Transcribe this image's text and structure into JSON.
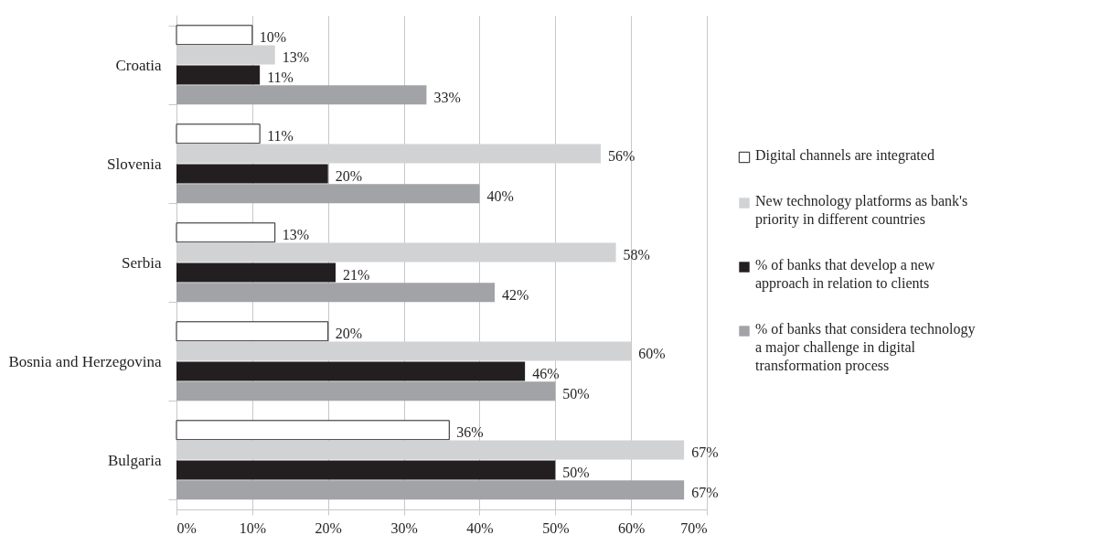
{
  "chart_data": {
    "type": "bar",
    "orientation": "horizontal",
    "categories": [
      "Croatia",
      "Slovenia",
      "Serbia",
      "Bosnia and Herzegovina",
      "Bulgaria"
    ],
    "series": [
      {
        "name": "Digital channels are integrated",
        "color": "#ffffff",
        "values": [
          10,
          11,
          13,
          20,
          36
        ],
        "value_labels": [
          "10%",
          "11%",
          "13%",
          "20%",
          "36%"
        ]
      },
      {
        "name": "New technology platforms as bank's priority in different countries",
        "color": "#d1d2d4",
        "values": [
          13,
          56,
          58,
          60,
          67
        ],
        "value_labels": [
          "13%",
          "56%",
          "58%",
          "60%",
          "67%"
        ]
      },
      {
        "name": "% of banks that develop a new approach in relation to clients",
        "color": "#231f20",
        "values": [
          11,
          20,
          21,
          46,
          50
        ],
        "value_labels": [
          "11%",
          "20%",
          "21%",
          "46%",
          "50%"
        ]
      },
      {
        "name": "% of banks that considera technology a major challenge in digital transformation process",
        "color": "#a2a3a7",
        "values": [
          33,
          40,
          42,
          50,
          67
        ],
        "value_labels": [
          "33%",
          "40%",
          "42%",
          "50%",
          "67%"
        ]
      }
    ],
    "xlim": [
      0,
      70
    ],
    "xticks": [
      {
        "value": 0,
        "label": "0%"
      },
      {
        "value": 10,
        "label": "10%"
      },
      {
        "value": 20,
        "label": "20%"
      },
      {
        "value": 30,
        "label": "30%"
      },
      {
        "value": 40,
        "label": "40%"
      },
      {
        "value": 50,
        "label": "50%"
      },
      {
        "value": 60,
        "label": "60%"
      },
      {
        "value": 70,
        "label": "70%"
      }
    ],
    "grid": "x",
    "legend": "right"
  }
}
